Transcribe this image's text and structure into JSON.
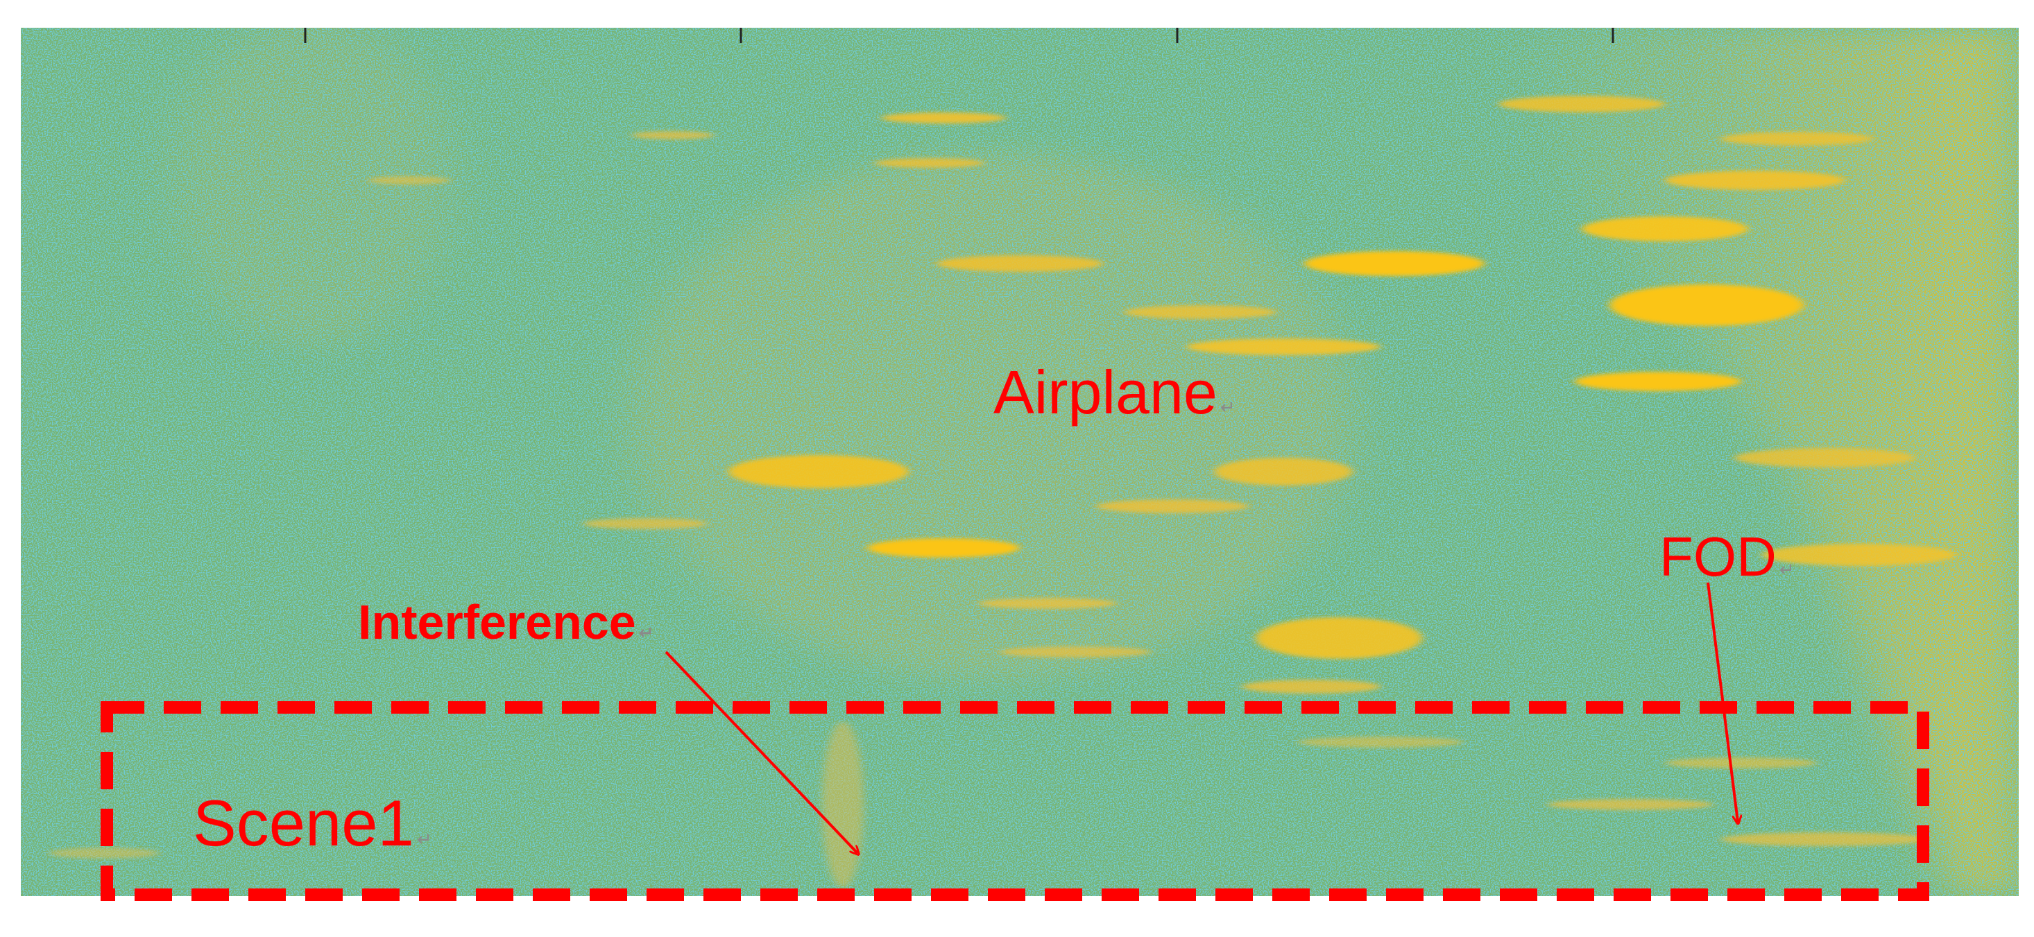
{
  "labels": {
    "airplane": "Airplane",
    "fod": "FOD",
    "interference": "Interference",
    "scene1": "Scene1",
    "return_mark": "↵"
  },
  "colors": {
    "annotation": "#ff0000",
    "background_green": "#77b26e",
    "target_yellow": "#f9c41a",
    "speckle_blue": "#2a9aa6"
  }
}
